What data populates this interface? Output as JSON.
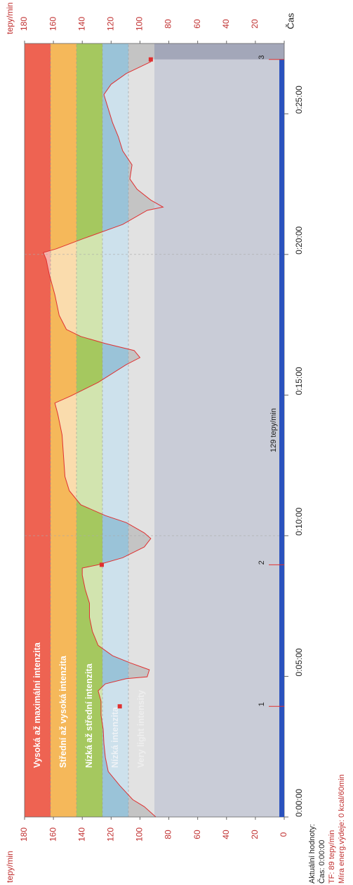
{
  "chart_data": {
    "type": "line",
    "y_label": "tepy/min",
    "x_label": "Čas",
    "xlim": [
      0,
      1650
    ],
    "xticks": [
      {
        "value": 0,
        "label": "0:00:00"
      },
      {
        "value": 300,
        "label": "0:05:00"
      },
      {
        "value": 600,
        "label": "0:10:00"
      },
      {
        "value": 900,
        "label": "0:15:00"
      },
      {
        "value": 1200,
        "label": "0:20:00"
      },
      {
        "value": 1500,
        "label": "0:25:00"
      }
    ],
    "ylim": [
      0,
      180
    ],
    "yticks": [
      180,
      160,
      140,
      120,
      100,
      80,
      60,
      40,
      20,
      0
    ],
    "zones": [
      {
        "name": "Vysoká až maximální intenzita",
        "from": 162,
        "to": 180,
        "color": "#ee6352",
        "text_color": "#ffffff"
      },
      {
        "name": "Střední až vysoká intenzita",
        "from": 144,
        "to": 162,
        "color": "#f5b85a",
        "text_color": "#ffffff"
      },
      {
        "name": "Nízká až střední intenzita",
        "from": 126,
        "to": 144,
        "color": "#a5c85f",
        "text_color": "#ffffff"
      },
      {
        "name": "Nízká intenzita",
        "from": 108,
        "to": 126,
        "color": "#9ac3d8",
        "text_color": "#eef2f6"
      },
      {
        "name": "Very light intensity",
        "from": 90,
        "to": 108,
        "color": "#c4c4c4",
        "text_color": "#eeeeee"
      }
    ],
    "below_zone_color": "#c9ccd7",
    "series": [
      {
        "name": "TF",
        "color": "#e03030",
        "x": [
          0,
          22,
          37,
          67,
          97,
          127,
          157,
          187,
          217,
          247,
          269,
          284,
          295,
          299,
          314,
          329,
          344,
          366,
          396,
          426,
          456,
          486,
          516,
          531,
          538,
          553,
          576,
          594,
          606,
          628,
          643,
          666,
          696,
          726,
          770,
          815,
          860,
          883,
          898,
          927,
          965,
          980,
          995,
          1010,
          1025,
          1040,
          1070,
          1114,
          1159,
          1189,
          1204,
          1212,
          1234,
          1264,
          1294,
          1301,
          1316,
          1339,
          1361,
          1391,
          1421,
          1451,
          1481,
          1511,
          1541,
          1563,
          1586,
          1611,
          1616
        ],
        "values": [
          89,
          97,
          105,
          114,
          122,
          124,
          125,
          125.5,
          127,
          127,
          129,
          124,
          109.5,
          95,
          93.5,
          107,
          119,
          129,
          133,
          135,
          135,
          138,
          140,
          140,
          129,
          112,
          97,
          92.5,
          97,
          109.5,
          124,
          141,
          149,
          152,
          153,
          154,
          157,
          159,
          148,
          129,
          109.5,
          100,
          104,
          124,
          141,
          151,
          156,
          159,
          163,
          165,
          167,
          158,
          139,
          112,
          95,
          84,
          92.5,
          102,
          107,
          105.5,
          112,
          115,
          119,
          122,
          125,
          120,
          109.5,
          92.5,
          92.5
        ]
      }
    ],
    "laps": [
      {
        "label": "1",
        "x": 236,
        "y": 114
      },
      {
        "label": "2",
        "x": 538,
        "y": 126.5
      },
      {
        "label": "3",
        "x": 1616,
        "y": 92.5
      }
    ],
    "average_label": "129 tepy/min",
    "legend": {
      "heading": "Aktuální hodnoty:",
      "time": "Čas: 0:00:00",
      "hr": "TF: 89 tepy/min",
      "energy": "Míra energ.výdeje: 0 kcal/60min"
    }
  }
}
